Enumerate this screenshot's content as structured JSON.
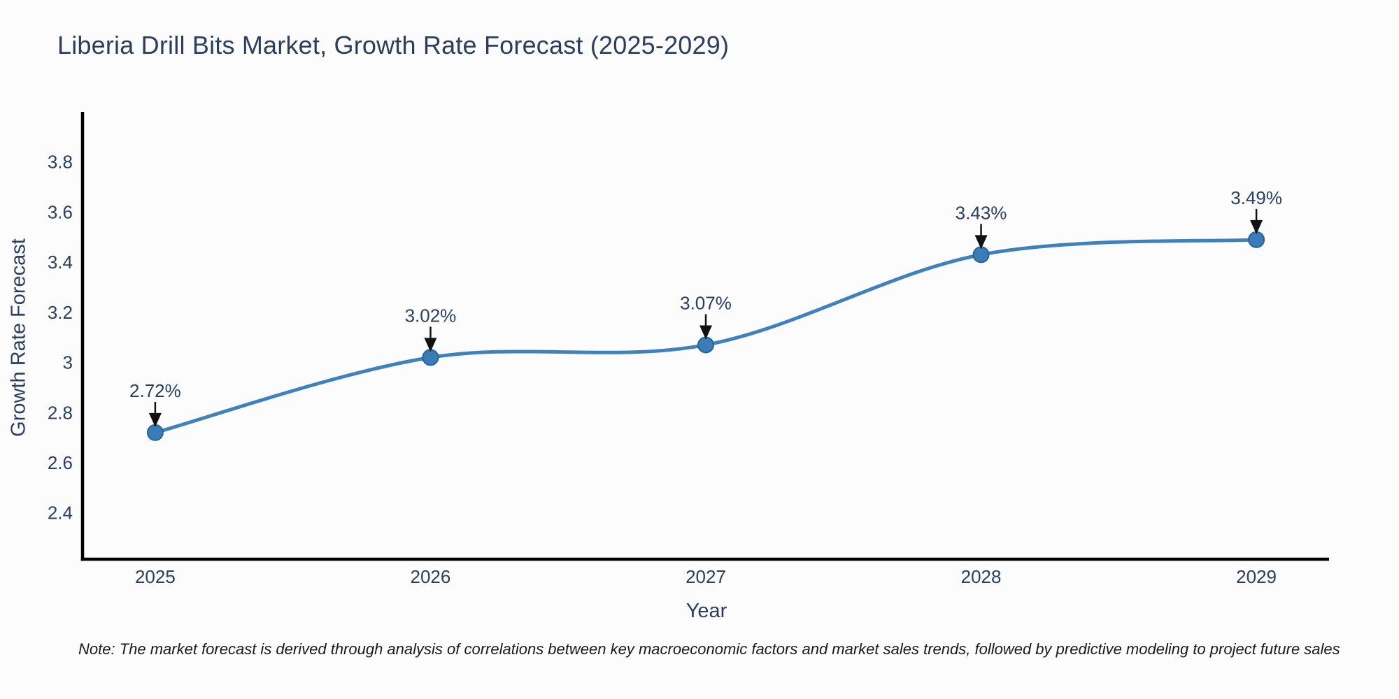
{
  "page": {
    "background": "#fcfcfc"
  },
  "chart_data": {
    "type": "line",
    "title": "Liberia Drill Bits Market, Growth Rate Forecast (2025-2029)",
    "xlabel": "Year",
    "ylabel": "Growth Rate Forecast",
    "x": [
      2025,
      2026,
      2027,
      2028,
      2029
    ],
    "values": [
      2.72,
      3.02,
      3.07,
      3.43,
      3.49
    ],
    "point_labels": [
      "2.72%",
      "3.02%",
      "3.07%",
      "3.43%",
      "3.49%"
    ],
    "x_tick_labels": [
      "2025",
      "2026",
      "2027",
      "2028",
      "2029"
    ],
    "y_ticks": [
      2.4,
      2.6,
      2.8,
      3.0,
      3.2,
      3.4,
      3.6,
      3.8
    ],
    "y_tick_labels": [
      "2.4",
      "2.6",
      "2.8",
      "3",
      "3.2",
      "3.4",
      "3.6",
      "3.8"
    ],
    "xlim": [
      2024.736,
      2029.264
    ],
    "ylim": [
      2.215,
      4.0
    ],
    "grid": false,
    "legend": null,
    "curve": "smooth",
    "line_color": "#3f81bb",
    "marker_fill": "#3a7cb8",
    "marker_edge": "#2a6496",
    "axis_color": "#000000",
    "text_color": "#2a3f5f",
    "annotation_arrow_color": "#111111"
  },
  "note": {
    "text": "Note: The market forecast is derived through analysis of correlations between key macroeconomic factors and market sales trends, followed by predictive modeling to project future sales"
  }
}
